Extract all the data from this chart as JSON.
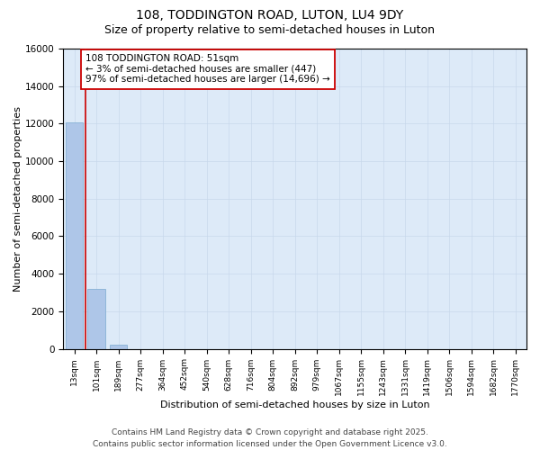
{
  "title1": "108, TODDINGTON ROAD, LUTON, LU4 9DY",
  "title2": "Size of property relative to semi-detached houses in Luton",
  "xlabel": "Distribution of semi-detached houses by size in Luton",
  "ylabel": "Number of semi-detached properties",
  "categories": [
    "13sqm",
    "101sqm",
    "189sqm",
    "277sqm",
    "364sqm",
    "452sqm",
    "540sqm",
    "628sqm",
    "716sqm",
    "804sqm",
    "892sqm",
    "979sqm",
    "1067sqm",
    "1155sqm",
    "1243sqm",
    "1331sqm",
    "1419sqm",
    "1506sqm",
    "1594sqm",
    "1682sqm",
    "1770sqm"
  ],
  "values": [
    12050,
    3200,
    200,
    0,
    0,
    0,
    0,
    0,
    0,
    0,
    0,
    0,
    0,
    0,
    0,
    0,
    0,
    0,
    0,
    0,
    0
  ],
  "bar_color": "#aec6e8",
  "bar_edge_color": "#7aaad0",
  "ylim": [
    0,
    16000
  ],
  "yticks": [
    0,
    2000,
    4000,
    6000,
    8000,
    10000,
    12000,
    14000,
    16000
  ],
  "annotation_text": "108 TODDINGTON ROAD: 51sqm\n← 3% of semi-detached houses are smaller (447)\n97% of semi-detached houses are larger (14,696) →",
  "annotation_box_color": "#ffffff",
  "annotation_box_edgecolor": "#cc0000",
  "vline_color": "#cc0000",
  "grid_color": "#c8d8ec",
  "background_color": "#ddeaf8",
  "footer_text": "Contains HM Land Registry data © Crown copyright and database right 2025.\nContains public sector information licensed under the Open Government Licence v3.0.",
  "title1_fontsize": 10,
  "title2_fontsize": 9,
  "ylabel_fontsize": 8,
  "xlabel_fontsize": 8,
  "annotation_fontsize": 7.5,
  "footer_fontsize": 6.5
}
